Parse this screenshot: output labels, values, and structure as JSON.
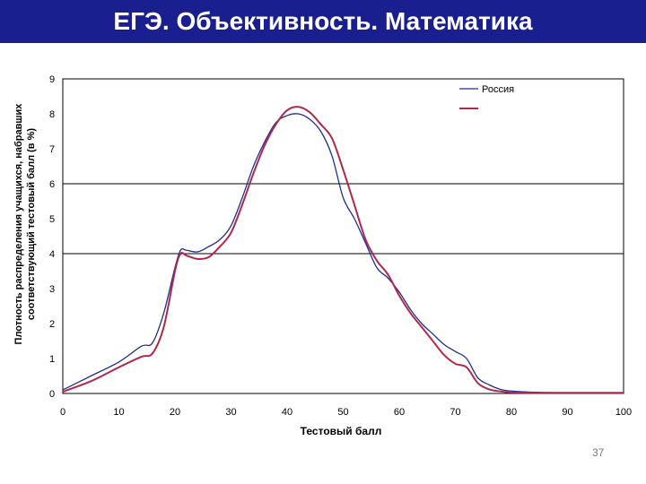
{
  "slide": {
    "title": "ЕГЭ. Объективность. Математика",
    "page_number": "37"
  },
  "colors": {
    "title_bar": "#1a1f8f",
    "russia": "#1f2f8f",
    "region": "#b0284a"
  },
  "chart_data": {
    "type": "line",
    "title": "ЕГЭ. Объективность. Математика",
    "xlabel": "Тестовый балл",
    "ylabel_lines": [
      "Плотность распределения учащихся, набравших",
      "соответствующий тестовый балл (в %)"
    ],
    "xlim": [
      0,
      100
    ],
    "ylim": [
      0,
      9
    ],
    "xticks": [
      "0",
      "10",
      "20",
      "30",
      "40",
      "50",
      "60",
      "70",
      "80",
      "90",
      "100"
    ],
    "yticks": [
      "0",
      "1",
      "2",
      "3",
      "4",
      "5",
      "6",
      "7",
      "8",
      "9"
    ],
    "reference_lines": [
      4,
      6
    ],
    "legend_placement": "top-right",
    "series": [
      {
        "name": "Россия",
        "color": "#1f2f8f",
        "x": [
          0,
          5,
          10,
          14,
          16,
          18,
          20,
          21,
          22,
          24,
          26,
          28,
          30,
          32,
          34,
          36,
          38,
          40,
          42,
          44,
          46,
          48,
          50,
          52,
          54,
          56,
          58,
          60,
          62,
          64,
          66,
          68,
          70,
          72,
          74,
          76,
          78,
          80,
          85,
          90,
          95,
          100
        ],
        "y": [
          0.1,
          0.5,
          0.9,
          1.35,
          1.45,
          2.3,
          3.6,
          4.1,
          4.1,
          4.05,
          4.2,
          4.4,
          4.8,
          5.6,
          6.5,
          7.2,
          7.75,
          7.95,
          8.0,
          7.85,
          7.5,
          6.8,
          5.6,
          5.0,
          4.3,
          3.6,
          3.3,
          2.9,
          2.4,
          2.0,
          1.7,
          1.4,
          1.2,
          1.0,
          0.45,
          0.25,
          0.12,
          0.07,
          0.03,
          0.02,
          0.02,
          0.02
        ]
      },
      {
        "name": "",
        "color": "#b0284a",
        "x": [
          0,
          5,
          10,
          14,
          16,
          18,
          20,
          21,
          22,
          24,
          26,
          28,
          30,
          32,
          34,
          36,
          38,
          40,
          42,
          44,
          46,
          48,
          50,
          52,
          54,
          56,
          58,
          60,
          62,
          64,
          66,
          68,
          70,
          72,
          74,
          76,
          78,
          80,
          85,
          90,
          95,
          100
        ],
        "y": [
          0.05,
          0.35,
          0.75,
          1.05,
          1.15,
          1.9,
          3.5,
          4.0,
          3.95,
          3.85,
          3.9,
          4.2,
          4.6,
          5.4,
          6.3,
          7.1,
          7.7,
          8.1,
          8.2,
          8.05,
          7.7,
          7.3,
          6.4,
          5.4,
          4.4,
          3.8,
          3.4,
          2.8,
          2.3,
          1.9,
          1.5,
          1.1,
          0.85,
          0.75,
          0.3,
          0.12,
          0.06,
          0.03,
          0.02,
          0.02,
          0.02,
          0.02
        ]
      }
    ]
  }
}
